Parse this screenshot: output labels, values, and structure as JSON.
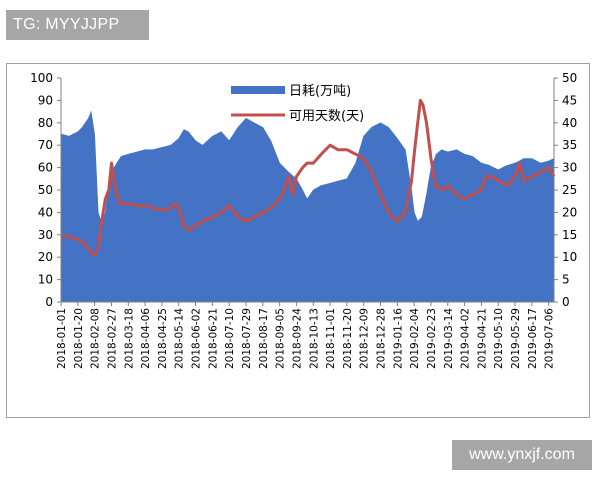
{
  "watermarks": {
    "top": "TG: MYYJJPP",
    "bottom": "www.ynxjf.com"
  },
  "colors": {
    "bars": "#4472c4",
    "line": "#c0504d",
    "axis": "#808080",
    "frame": "#a0a0a0"
  },
  "chart_data": {
    "type": "bar",
    "title": "",
    "left_axis": {
      "min": 0,
      "max": 100,
      "ticks": [
        "0",
        "10",
        "20",
        "30",
        "40",
        "50",
        "60",
        "70",
        "80",
        "90",
        "100"
      ]
    },
    "right_axis": {
      "min": 0,
      "max": 50,
      "ticks": [
        "0",
        "5",
        "10",
        "15",
        "20",
        "25",
        "30",
        "35",
        "40",
        "45",
        "50"
      ]
    },
    "x_tick_labels": [
      "2018-01-01",
      "2018-01-20",
      "2018-02-08",
      "2018-02-27",
      "2018-03-18",
      "2018-04-06",
      "2018-04-25",
      "2018-05-14",
      "2018-06-02",
      "2018-06-21",
      "2018-07-10",
      "2018-07-29",
      "2018-08-17",
      "2018-09-05",
      "2018-09-24",
      "2018-10-13",
      "2018-11-01",
      "2018-11-20",
      "2018-12-09",
      "2018-12-28",
      "2019-01-16",
      "2019-02-04",
      "2019-02-23",
      "2019-03-14",
      "2019-04-02",
      "2019-04-21",
      "2019-05-10",
      "2019-05-29",
      "2019-06-17",
      "2019-07-06"
    ],
    "legend": {
      "position": "top-center"
    },
    "series": [
      {
        "name": "日耗(万吨)",
        "kind": "bar",
        "axis": "left",
        "points": [
          [
            "2018-01-01",
            75
          ],
          [
            "2018-01-10",
            74
          ],
          [
            "2018-01-20",
            76
          ],
          [
            "2018-01-25",
            78
          ],
          [
            "2018-02-01",
            82
          ],
          [
            "2018-02-04",
            85
          ],
          [
            "2018-02-08",
            75
          ],
          [
            "2018-02-12",
            40
          ],
          [
            "2018-02-16",
            35
          ],
          [
            "2018-02-20",
            40
          ],
          [
            "2018-02-24",
            52
          ],
          [
            "2018-02-27",
            58
          ],
          [
            "2018-03-05",
            62
          ],
          [
            "2018-03-10",
            65
          ],
          [
            "2018-03-18",
            66
          ],
          [
            "2018-03-28",
            67
          ],
          [
            "2018-04-06",
            68
          ],
          [
            "2018-04-15",
            68
          ],
          [
            "2018-04-25",
            69
          ],
          [
            "2018-05-05",
            70
          ],
          [
            "2018-05-14",
            73
          ],
          [
            "2018-05-20",
            77
          ],
          [
            "2018-05-25",
            76
          ],
          [
            "2018-06-02",
            72
          ],
          [
            "2018-06-10",
            70
          ],
          [
            "2018-06-21",
            74
          ],
          [
            "2018-07-01",
            76
          ],
          [
            "2018-07-10",
            72
          ],
          [
            "2018-07-20",
            78
          ],
          [
            "2018-07-29",
            82
          ],
          [
            "2018-08-07",
            80
          ],
          [
            "2018-08-17",
            78
          ],
          [
            "2018-08-26",
            72
          ],
          [
            "2018-09-05",
            62
          ],
          [
            "2018-09-15",
            58
          ],
          [
            "2018-09-24",
            55
          ],
          [
            "2018-10-01",
            50
          ],
          [
            "2018-10-06",
            46
          ],
          [
            "2018-10-13",
            50
          ],
          [
            "2018-10-22",
            52
          ],
          [
            "2018-11-01",
            53
          ],
          [
            "2018-11-10",
            54
          ],
          [
            "2018-11-20",
            55
          ],
          [
            "2018-11-30",
            62
          ],
          [
            "2018-12-09",
            74
          ],
          [
            "2018-12-18",
            78
          ],
          [
            "2018-12-28",
            80
          ],
          [
            "2019-01-06",
            78
          ],
          [
            "2019-01-16",
            73
          ],
          [
            "2019-01-25",
            68
          ],
          [
            "2019-02-01",
            50
          ],
          [
            "2019-02-04",
            40
          ],
          [
            "2019-02-08",
            36
          ],
          [
            "2019-02-13",
            38
          ],
          [
            "2019-02-18",
            48
          ],
          [
            "2019-02-23",
            60
          ],
          [
            "2019-03-01",
            66
          ],
          [
            "2019-03-07",
            68
          ],
          [
            "2019-03-14",
            67
          ],
          [
            "2019-03-24",
            68
          ],
          [
            "2019-04-02",
            66
          ],
          [
            "2019-04-11",
            65
          ],
          [
            "2019-04-21",
            62
          ],
          [
            "2019-04-30",
            61
          ],
          [
            "2019-05-10",
            59
          ],
          [
            "2019-05-20",
            61
          ],
          [
            "2019-05-29",
            62
          ],
          [
            "2019-06-08",
            64
          ],
          [
            "2019-06-17",
            64
          ],
          [
            "2019-06-27",
            62
          ],
          [
            "2019-07-06",
            63
          ],
          [
            "2019-07-12",
            64
          ]
        ]
      },
      {
        "name": "可用天数(天)",
        "kind": "line",
        "axis": "right",
        "points": [
          [
            "2018-01-01",
            15
          ],
          [
            "2018-01-10",
            14.5
          ],
          [
            "2018-01-20",
            14
          ],
          [
            "2018-01-28",
            13
          ],
          [
            "2018-02-04",
            11
          ],
          [
            "2018-02-08",
            10.5
          ],
          [
            "2018-02-12",
            12
          ],
          [
            "2018-02-16",
            18
          ],
          [
            "2018-02-20",
            23
          ],
          [
            "2018-02-24",
            25
          ],
          [
            "2018-02-27",
            31
          ],
          [
            "2018-03-03",
            26
          ],
          [
            "2018-03-08",
            22
          ],
          [
            "2018-03-18",
            22
          ],
          [
            "2018-03-28",
            21.5
          ],
          [
            "2018-04-06",
            21.5
          ],
          [
            "2018-04-15",
            21
          ],
          [
            "2018-04-25",
            20.5
          ],
          [
            "2018-05-05",
            21
          ],
          [
            "2018-05-10",
            22
          ],
          [
            "2018-05-14",
            21
          ],
          [
            "2018-05-20",
            17
          ],
          [
            "2018-05-26",
            16
          ],
          [
            "2018-06-02",
            17
          ],
          [
            "2018-06-10",
            18
          ],
          [
            "2018-06-21",
            19
          ],
          [
            "2018-07-01",
            20
          ],
          [
            "2018-07-10",
            21.5
          ],
          [
            "2018-07-20",
            19
          ],
          [
            "2018-07-29",
            18
          ],
          [
            "2018-08-07",
            19
          ],
          [
            "2018-08-17",
            20
          ],
          [
            "2018-08-26",
            21
          ],
          [
            "2018-09-05",
            23
          ],
          [
            "2018-09-10",
            25
          ],
          [
            "2018-09-15",
            28
          ],
          [
            "2018-09-20",
            24
          ],
          [
            "2018-09-24",
            28
          ],
          [
            "2018-10-01",
            30
          ],
          [
            "2018-10-06",
            31
          ],
          [
            "2018-10-13",
            31
          ],
          [
            "2018-10-22",
            33
          ],
          [
            "2018-11-01",
            35
          ],
          [
            "2018-11-10",
            34
          ],
          [
            "2018-11-20",
            34
          ],
          [
            "2018-11-30",
            33
          ],
          [
            "2018-12-09",
            32
          ],
          [
            "2018-12-18",
            29
          ],
          [
            "2018-12-28",
            24
          ],
          [
            "2019-01-06",
            20
          ],
          [
            "2019-01-16",
            18
          ],
          [
            "2019-01-25",
            20
          ],
          [
            "2019-02-01",
            27
          ],
          [
            "2019-02-04",
            33
          ],
          [
            "2019-02-08",
            40
          ],
          [
            "2019-02-11",
            45
          ],
          [
            "2019-02-14",
            44
          ],
          [
            "2019-02-18",
            40
          ],
          [
            "2019-02-23",
            32
          ],
          [
            "2019-02-28",
            26
          ],
          [
            "2019-03-07",
            25
          ],
          [
            "2019-03-14",
            26
          ],
          [
            "2019-03-24",
            24
          ],
          [
            "2019-04-02",
            23
          ],
          [
            "2019-04-11",
            24
          ],
          [
            "2019-04-21",
            25
          ],
          [
            "2019-04-26",
            28
          ],
          [
            "2019-05-03",
            28
          ],
          [
            "2019-05-10",
            27
          ],
          [
            "2019-05-20",
            26
          ],
          [
            "2019-05-29",
            28
          ],
          [
            "2019-06-03",
            31
          ],
          [
            "2019-06-08",
            27
          ],
          [
            "2019-06-17",
            28
          ],
          [
            "2019-06-27",
            29
          ],
          [
            "2019-07-06",
            30
          ],
          [
            "2019-07-12",
            28
          ]
        ]
      }
    ]
  }
}
